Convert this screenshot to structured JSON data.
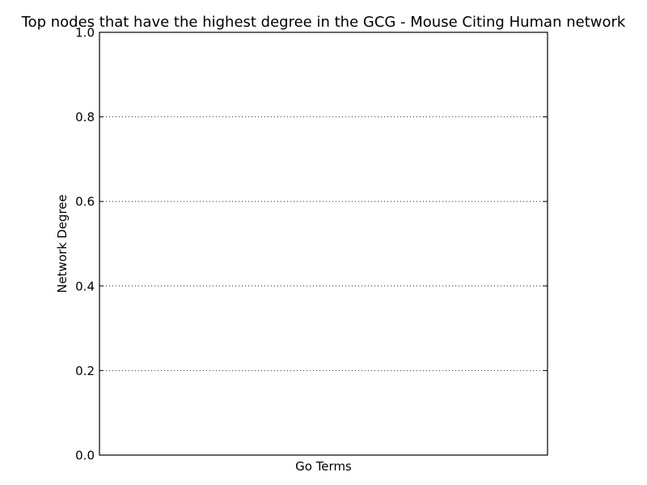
{
  "chart_data": {
    "type": "bar",
    "title": "Top nodes that have the highest degree in the GCG - Mouse Citing Human network",
    "xlabel": "Go Terms",
    "ylabel": "Network Degree",
    "categories": [],
    "values": [],
    "ylim": [
      0,
      1
    ],
    "yticks": [
      0.0,
      0.2,
      0.4,
      0.6,
      0.8,
      1.0
    ],
    "ytick_labels": [
      "0.0",
      "0.2",
      "0.4",
      "0.6",
      "0.8",
      "1.0"
    ],
    "grid": "y-dotted",
    "legend": "none"
  }
}
